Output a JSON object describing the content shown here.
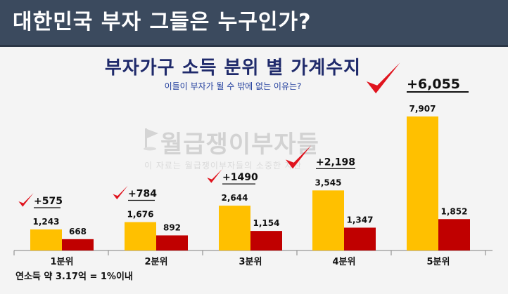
{
  "header": {
    "title": "대한민국 부자 그들은 누구인가?"
  },
  "watermark": {
    "logo_text": "월급쟁이부자들",
    "notice": "이 자료는 월급쟁이부자들의 소중한 자산"
  },
  "footnote": "연소득 약 3.17억 = 1%이내",
  "colors": {
    "series1": "#ffc000",
    "series2": "#c00000",
    "check": "#e0141e",
    "header_bg": "#3b4a5e"
  },
  "chart_data": {
    "type": "bar",
    "title": "부자가구 소득 분위 별 가계수지",
    "subtitle": "이들이 부자가 될 수 밖에 없는 이유는?",
    "categories": [
      "1분위",
      "2분위",
      "3분위",
      "4분위",
      "5분위"
    ],
    "series": [
      {
        "values": [
          1243,
          1676,
          2644,
          3545,
          7907
        ]
      },
      {
        "values": [
          668,
          892,
          1154,
          1347,
          1852
        ]
      }
    ],
    "value_labels": [
      [
        "1,243",
        "1,676",
        "2,644",
        "3,545",
        "7,907"
      ],
      [
        "668",
        "892",
        "1,154",
        "1,347",
        "1,852"
      ]
    ],
    "differences": [
      "+575",
      "+784",
      "+1490",
      "+2,198",
      "+6,055"
    ],
    "ylim": [
      0,
      8000
    ],
    "grid": false,
    "legend": "none"
  }
}
